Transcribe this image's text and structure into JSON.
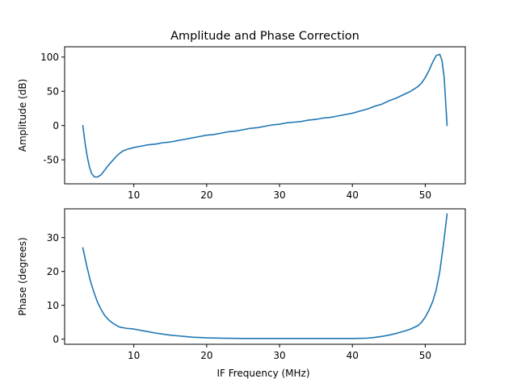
{
  "figure": {
    "title": "Amplitude and Phase Correction"
  },
  "colors": {
    "series": "#1f77b4",
    "axes": "#000000",
    "background": "#ffffff"
  },
  "chart_data": [
    {
      "type": "line",
      "title": "Amplitude and Phase Correction",
      "xlabel": "",
      "ylabel": "Amplitude (dB)",
      "xlim": [
        0.5,
        55.5
      ],
      "ylim": [
        -85,
        115
      ],
      "xticks": [
        10,
        20,
        30,
        40,
        50
      ],
      "yticks": [
        -50,
        0,
        50,
        100
      ],
      "grid": false,
      "series": [
        {
          "name": "",
          "x": [
            3,
            3.3,
            3.6,
            3.9,
            4.2,
            4.6,
            5,
            5.5,
            6,
            6.5,
            7,
            7.5,
            8,
            8.5,
            9,
            10,
            11,
            12,
            13,
            14,
            15,
            16,
            17,
            18,
            19,
            20,
            21,
            22,
            23,
            24,
            25,
            26,
            27,
            28,
            29,
            30,
            31,
            32,
            33,
            34,
            35,
            36,
            37,
            38,
            39,
            40,
            41,
            42,
            43,
            44,
            45,
            46,
            47,
            48,
            49,
            49.5,
            50,
            50.5,
            51,
            51.5,
            52,
            52.3,
            52.6,
            52.8,
            53
          ],
          "y": [
            0,
            -25,
            -45,
            -60,
            -70,
            -75,
            -75,
            -72,
            -65,
            -58,
            -52,
            -46,
            -41,
            -37,
            -35,
            -32,
            -30,
            -28,
            -27,
            -25,
            -24,
            -22,
            -20,
            -18,
            -16,
            -14,
            -13,
            -11,
            -9,
            -8,
            -6,
            -4,
            -3,
            -1,
            1,
            2,
            4,
            5,
            6,
            8,
            9,
            11,
            12,
            14,
            16,
            18,
            21,
            24,
            28,
            31,
            36,
            40,
            45,
            50,
            57,
            62,
            70,
            80,
            92,
            102,
            104,
            95,
            70,
            35,
            0
          ]
        }
      ]
    },
    {
      "type": "line",
      "title": "",
      "xlabel": "IF Frequency (MHz)",
      "ylabel": "Phase (degrees)",
      "xlim": [
        0.5,
        55.5
      ],
      "ylim": [
        -1.5,
        38.5
      ],
      "xticks": [
        10,
        20,
        30,
        40,
        50
      ],
      "yticks": [
        0,
        10,
        20,
        30
      ],
      "grid": false,
      "series": [
        {
          "name": "",
          "x": [
            3,
            3.5,
            4,
            4.5,
            5,
            5.5,
            6,
            6.5,
            7,
            7.5,
            8,
            9,
            10,
            11,
            12,
            13,
            14,
            15,
            16,
            17,
            18,
            20,
            22,
            25,
            28,
            30,
            33,
            35,
            38,
            40,
            42,
            43,
            44,
            45,
            46,
            47,
            48,
            49,
            49.5,
            50,
            50.5,
            51,
            51.5,
            52,
            52.5,
            53
          ],
          "y": [
            27,
            22,
            17.5,
            14,
            11,
            8.8,
            7,
            5.8,
            4.9,
            4.2,
            3.6,
            3.2,
            3,
            2.6,
            2.2,
            1.8,
            1.5,
            1.2,
            1,
            0.8,
            0.6,
            0.4,
            0.3,
            0.2,
            0.2,
            0.2,
            0.2,
            0.2,
            0.2,
            0.2,
            0.3,
            0.5,
            0.8,
            1.2,
            1.7,
            2.3,
            3,
            4,
            5,
            6.5,
            8.5,
            11,
            14.5,
            20,
            28,
            37
          ]
        }
      ]
    }
  ]
}
